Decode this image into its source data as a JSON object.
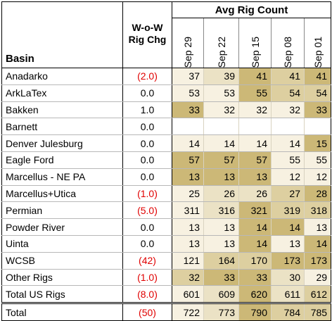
{
  "header": {
    "basin": "Basin",
    "wow_line1": "W-o-W",
    "wow_line2": "Rig Chg",
    "avg": "Avg Rig Count",
    "dates": [
      "Sep 29",
      "Sep 22",
      "Sep 15",
      "Sep 08",
      "Sep 01"
    ]
  },
  "colors": {
    "level_1": "#f7f1e1",
    "level_2": "#ebe2c5",
    "level_3": "#ddcfa0",
    "level_4": "#ccb877",
    "negative_text": "#e00000"
  },
  "rows": [
    {
      "basin": "Anadarko",
      "wow": "(2.0)",
      "neg": true,
      "values": [
        "37",
        "39",
        "41",
        "41",
        "41"
      ],
      "shade": [
        1,
        2,
        4,
        3,
        4
      ]
    },
    {
      "basin": "ArkLaTex",
      "wow": "0.0",
      "neg": false,
      "values": [
        "53",
        "53",
        "55",
        "54",
        "54"
      ],
      "shade": [
        1,
        1,
        4,
        3,
        3
      ]
    },
    {
      "basin": "Bakken",
      "wow": "1.0",
      "neg": false,
      "values": [
        "33",
        "32",
        "32",
        "32",
        "33"
      ],
      "shade": [
        4,
        1,
        1,
        1,
        4
      ]
    },
    {
      "basin": "Barnett",
      "wow": "0.0",
      "neg": false,
      "values": [
        "",
        "",
        "",
        "",
        ""
      ],
      "shade": [
        0,
        0,
        0,
        0,
        0
      ]
    },
    {
      "basin": "Denver Julesburg",
      "wow": "0.0",
      "neg": false,
      "values": [
        "14",
        "14",
        "14",
        "14",
        "15"
      ],
      "shade": [
        1,
        1,
        1,
        1,
        4
      ]
    },
    {
      "basin": "Eagle Ford",
      "wow": "0.0",
      "neg": false,
      "values": [
        "57",
        "57",
        "57",
        "55",
        "55"
      ],
      "shade": [
        4,
        4,
        4,
        1,
        1
      ]
    },
    {
      "basin": "Marcellus - NE PA",
      "wow": "0.0",
      "neg": false,
      "values": [
        "13",
        "13",
        "13",
        "12",
        "12"
      ],
      "shade": [
        4,
        4,
        4,
        1,
        1
      ]
    },
    {
      "basin": "Marcellus+Utica",
      "wow": "(1.0)",
      "neg": true,
      "values": [
        "25",
        "26",
        "26",
        "27",
        "28"
      ],
      "shade": [
        1,
        2,
        2,
        3,
        4
      ]
    },
    {
      "basin": "Permian",
      "wow": "(5.0)",
      "neg": true,
      "values": [
        "311",
        "316",
        "321",
        "319",
        "318"
      ],
      "shade": [
        1,
        2,
        4,
        3,
        3
      ]
    },
    {
      "basin": "Powder River",
      "wow": "0.0",
      "neg": false,
      "values": [
        "13",
        "13",
        "14",
        "14",
        "13"
      ],
      "shade": [
        1,
        1,
        4,
        4,
        1
      ]
    },
    {
      "basin": "Uinta",
      "wow": "0.0",
      "neg": false,
      "values": [
        "13",
        "13",
        "14",
        "13",
        "14"
      ],
      "shade": [
        1,
        1,
        4,
        1,
        4
      ]
    },
    {
      "basin": "WCSB",
      "wow": "(42)",
      "neg": true,
      "values": [
        "121",
        "164",
        "170",
        "173",
        "173"
      ],
      "shade": [
        1,
        3,
        3,
        4,
        4
      ]
    },
    {
      "basin": "Other Rigs",
      "wow": "(1.0)",
      "neg": true,
      "values": [
        "32",
        "33",
        "33",
        "30",
        "29"
      ],
      "shade": [
        3,
        4,
        4,
        2,
        1
      ]
    },
    {
      "basin": "Total US Rigs",
      "wow": "(8.0)",
      "neg": true,
      "values": [
        "601",
        "609",
        "620",
        "611",
        "612"
      ],
      "shade": [
        1,
        2,
        4,
        2,
        3
      ]
    },
    {
      "basin": "Total",
      "wow": "(50)",
      "neg": true,
      "values": [
        "722",
        "773",
        "790",
        "784",
        "785"
      ],
      "shade": [
        1,
        2,
        4,
        3,
        3
      ]
    }
  ]
}
